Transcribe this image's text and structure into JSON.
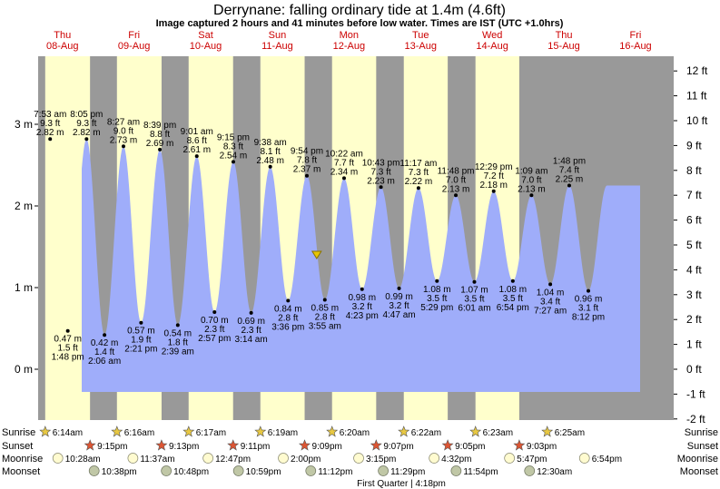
{
  "header": {
    "title": "Derrynane: falling  ordinary tide at 1.4m (4.6ft)",
    "subtitle": "Image captured 2 hours and 41 minutes before low water. Times are IST (UTC +1.0hrs)"
  },
  "colors": {
    "night": "#999999",
    "day": "#ffffcc",
    "tide_fill": "#9fadfa",
    "day_label": "#cc0000",
    "sun_star": "#e8c842",
    "sunset_star": "#dd5533",
    "moonrise": "#fffbd0",
    "moonset": "#c0c7a6"
  },
  "chart_data": {
    "type": "area",
    "title": "Derrynane: falling  ordinary tide at 1.4m (4.6ft)",
    "ylim_m": [
      -0.5,
      3.2
    ],
    "ylim_ft": [
      -2,
      12
    ],
    "left_ticks": [
      "0 m",
      "1 m",
      "2 m",
      "3 m"
    ],
    "right_ticks": [
      "-2 ft",
      "-1 ft",
      "0 ft",
      "1 ft",
      "2 ft",
      "3 ft",
      "4 ft",
      "5 ft",
      "6 ft",
      "7 ft",
      "8 ft",
      "9 ft",
      "10 ft",
      "11 ft",
      "12 ft"
    ],
    "days": [
      {
        "name": "Thu",
        "date": "08-Aug"
      },
      {
        "name": "Fri",
        "date": "09-Aug"
      },
      {
        "name": "Sat",
        "date": "10-Aug"
      },
      {
        "name": "Sun",
        "date": "11-Aug"
      },
      {
        "name": "Mon",
        "date": "12-Aug"
      },
      {
        "name": "Tue",
        "date": "13-Aug"
      },
      {
        "name": "Wed",
        "date": "14-Aug"
      },
      {
        "name": "Thu",
        "date": "15-Aug"
      },
      {
        "name": "Fri",
        "date": "16-Aug"
      }
    ],
    "tides": [
      {
        "type": "high",
        "day": 0,
        "time": "7:53 am",
        "ft": "9.3 ft",
        "m": 2.82
      },
      {
        "type": "low",
        "day": 0,
        "time": "1:48 pm",
        "ft": "1.5 ft",
        "m": 0.47
      },
      {
        "type": "high",
        "day": 0,
        "time": "8:05 pm",
        "ft": "9.3 ft",
        "m": 2.82
      },
      {
        "type": "low",
        "day": 1,
        "time": "2:06 am",
        "ft": "1.4 ft",
        "m": 0.42
      },
      {
        "type": "high",
        "day": 1,
        "time": "8:27 am",
        "ft": "9.0 ft",
        "m": 2.73
      },
      {
        "type": "low",
        "day": 1,
        "time": "2:21 pm",
        "ft": "1.9 ft",
        "m": 0.57
      },
      {
        "type": "high",
        "day": 1,
        "time": "8:39 pm",
        "ft": "8.8 ft",
        "m": 2.69
      },
      {
        "type": "low",
        "day": 2,
        "time": "2:39 am",
        "ft": "1.8 ft",
        "m": 0.54
      },
      {
        "type": "high",
        "day": 2,
        "time": "9:01 am",
        "ft": "8.6 ft",
        "m": 2.61
      },
      {
        "type": "low",
        "day": 2,
        "time": "2:57 pm",
        "ft": "2.3 ft",
        "m": 0.7
      },
      {
        "type": "high",
        "day": 2,
        "time": "9:15 pm",
        "ft": "8.3 ft",
        "m": 2.54
      },
      {
        "type": "low",
        "day": 3,
        "time": "3:14 am",
        "ft": "2.3 ft",
        "m": 0.69
      },
      {
        "type": "high",
        "day": 3,
        "time": "9:38 am",
        "ft": "8.1 ft",
        "m": 2.48
      },
      {
        "type": "low",
        "day": 3,
        "time": "3:36 pm",
        "ft": "2.8 ft",
        "m": 0.84
      },
      {
        "type": "high",
        "day": 3,
        "time": "9:54 pm",
        "ft": "7.8 ft",
        "m": 2.37
      },
      {
        "type": "low",
        "day": 4,
        "time": "3:55 am",
        "ft": "2.8 ft",
        "m": 0.85
      },
      {
        "type": "high",
        "day": 4,
        "time": "10:22 am",
        "ft": "7.7 ft",
        "m": 2.34
      },
      {
        "type": "low",
        "day": 4,
        "time": "4:23 pm",
        "ft": "3.2 ft",
        "m": 0.98
      },
      {
        "type": "high",
        "day": 4,
        "time": "10:43 pm",
        "ft": "7.3 ft",
        "m": 2.23
      },
      {
        "type": "low",
        "day": 5,
        "time": "4:47 am",
        "ft": "3.2 ft",
        "m": 0.99
      },
      {
        "type": "high",
        "day": 5,
        "time": "11:17 am",
        "ft": "7.3 ft",
        "m": 2.22
      },
      {
        "type": "low",
        "day": 5,
        "time": "5:29 pm",
        "ft": "3.5 ft",
        "m": 1.08
      },
      {
        "type": "high",
        "day": 5,
        "time": "11:48 pm",
        "ft": "7.0 ft",
        "m": 2.13
      },
      {
        "type": "low",
        "day": 6,
        "time": "6:01 am",
        "ft": "3.5 ft",
        "m": 1.07
      },
      {
        "type": "high",
        "day": 6,
        "time": "12:29 pm",
        "ft": "7.2 ft",
        "m": 2.18
      },
      {
        "type": "low",
        "day": 6,
        "time": "6:54 pm",
        "ft": "3.5 ft",
        "m": 1.08
      },
      {
        "type": "high",
        "day": 7,
        "time": "1:09 am",
        "ft": "7.0 ft",
        "m": 2.13
      },
      {
        "type": "low",
        "day": 7,
        "time": "7:27 am",
        "ft": "3.4 ft",
        "m": 1.04
      },
      {
        "type": "high",
        "day": 7,
        "time": "1:48 pm",
        "ft": "7.4 ft",
        "m": 2.25
      },
      {
        "type": "low",
        "day": 7,
        "time": "8:12 pm",
        "ft": "3.1 ft",
        "m": 0.96
      }
    ],
    "current": {
      "height_m": 1.4,
      "day": 4,
      "time": "1:12 am"
    }
  },
  "astro": {
    "row_labels": [
      "Sunrise",
      "Sunset",
      "Moonrise",
      "Moonset"
    ],
    "sunrise": [
      {
        "day": 0,
        "time": "6:14am"
      },
      {
        "day": 1,
        "time": "6:16am"
      },
      {
        "day": 2,
        "time": "6:17am"
      },
      {
        "day": 3,
        "time": "6:19am"
      },
      {
        "day": 4,
        "time": "6:20am"
      },
      {
        "day": 5,
        "time": "6:22am"
      },
      {
        "day": 6,
        "time": "6:23am"
      },
      {
        "day": 7,
        "time": "6:25am"
      }
    ],
    "sunset": [
      {
        "day": 0,
        "time": "9:15pm"
      },
      {
        "day": 1,
        "time": "9:13pm"
      },
      {
        "day": 2,
        "time": "9:11pm"
      },
      {
        "day": 3,
        "time": "9:09pm"
      },
      {
        "day": 4,
        "time": "9:07pm"
      },
      {
        "day": 5,
        "time": "9:05pm"
      },
      {
        "day": 6,
        "time": "9:03pm"
      }
    ],
    "moonrise": [
      {
        "day": 0,
        "time": "10:28am"
      },
      {
        "day": 1,
        "time": "11:37am"
      },
      {
        "day": 2,
        "time": "12:47pm"
      },
      {
        "day": 3,
        "time": "2:00pm"
      },
      {
        "day": 4,
        "time": "3:15pm"
      },
      {
        "day": 5,
        "time": "4:32pm"
      },
      {
        "day": 6,
        "time": "5:47pm"
      },
      {
        "day": 7,
        "time": "6:54pm"
      }
    ],
    "moonset": [
      {
        "day": 0,
        "time": "10:38pm"
      },
      {
        "day": 1,
        "time": "10:48pm"
      },
      {
        "day": 2,
        "time": "10:59pm"
      },
      {
        "day": 3,
        "time": "11:12pm"
      },
      {
        "day": 4,
        "time": "11:29pm"
      },
      {
        "day": 5,
        "time": "11:54pm"
      },
      {
        "day": 7,
        "time": "12:30am"
      }
    ],
    "moon_phase": "First Quarter | 4:18pm"
  }
}
